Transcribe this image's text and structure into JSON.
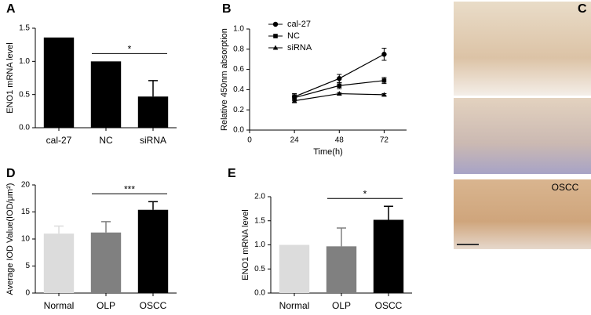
{
  "chart_data": [
    {
      "type": "bar",
      "panel": "A",
      "ylabel": "ENO1 mRNA level",
      "categories": [
        "cal-27",
        "NC",
        "siRNA"
      ],
      "values": [
        1.36,
        1.0,
        0.47
      ],
      "errors": [
        null,
        null,
        0.24
      ],
      "color": "#000000",
      "ylim": [
        0,
        1.5
      ],
      "yticks": [
        {
          "value": 0,
          "label": "0.0"
        },
        {
          "value": 0.5,
          "label": "0.5"
        },
        {
          "value": 1,
          "label": "1.0"
        },
        {
          "value": 1.5,
          "label": "1.5"
        }
      ],
      "significance": {
        "label": "*",
        "between": [
          1,
          2
        ]
      }
    },
    {
      "type": "line",
      "panel": "B",
      "ylabel": "Relative 450nm absorption",
      "xlabel": "Time(h)",
      "x": [
        24,
        48,
        72
      ],
      "series": [
        {
          "name": "cal-27",
          "marker": "circle",
          "color": "#000000",
          "values": [
            0.33,
            0.51,
            0.75
          ],
          "errors": [
            0.03,
            0.04,
            0.06
          ]
        },
        {
          "name": "NC",
          "marker": "square",
          "color": "#000000",
          "values": [
            0.32,
            0.44,
            0.49
          ],
          "errors": [
            0.03,
            0.03,
            0.03
          ]
        },
        {
          "name": "siRNA",
          "marker": "triangle",
          "color": "#000000",
          "values": [
            0.29,
            0.36,
            0.35
          ],
          "errors": [
            0.02,
            0.01,
            0.01
          ]
        }
      ],
      "xlim": [
        0,
        84
      ],
      "xticks": [
        0,
        24,
        48,
        72
      ],
      "ylim": [
        0,
        1
      ],
      "yticks": [
        {
          "value": 0,
          "label": "0.0"
        },
        {
          "value": 0.2,
          "label": "0.2"
        },
        {
          "value": 0.4,
          "label": "0.4"
        },
        {
          "value": 0.6,
          "label": "0.6"
        },
        {
          "value": 0.8,
          "label": "0.8"
        },
        {
          "value": 1,
          "label": "1.0"
        }
      ],
      "legend": "top-left"
    },
    {
      "type": "image",
      "panel": "C",
      "annotation": "OSCC"
    },
    {
      "type": "bar",
      "panel": "D",
      "ylabel": "Average IOD Value(IOD/μm²)",
      "categories": [
        "Normal",
        "OLP",
        "OSCC"
      ],
      "values": [
        11.0,
        11.2,
        15.4
      ],
      "errors": [
        1.4,
        2.0,
        1.5
      ],
      "colors": [
        "#dcdcdc",
        "#808080",
        "#000000"
      ],
      "ylim": [
        0,
        20
      ],
      "yticks": [
        0,
        5,
        10,
        15,
        20
      ],
      "significance": {
        "label": "***",
        "between": [
          1,
          2
        ]
      }
    },
    {
      "type": "bar",
      "panel": "E",
      "ylabel": "ENO1 mRNA level",
      "categories": [
        "Normal",
        "OLP",
        "OSCC"
      ],
      "values": [
        1.0,
        0.97,
        1.52
      ],
      "errors": [
        null,
        0.38,
        0.28
      ],
      "colors": [
        "#dcdcdc",
        "#808080",
        "#000000"
      ],
      "ylim": [
        0,
        2
      ],
      "yticks": [
        {
          "value": 0,
          "label": "0.0"
        },
        {
          "value": 0.5,
          "label": "0.5"
        },
        {
          "value": 1,
          "label": "1.0"
        },
        {
          "value": 1.5,
          "label": "1.5"
        },
        {
          "value": 2,
          "label": "2.0"
        }
      ],
      "significance": {
        "label": "*",
        "between": [
          1,
          2
        ]
      }
    }
  ]
}
